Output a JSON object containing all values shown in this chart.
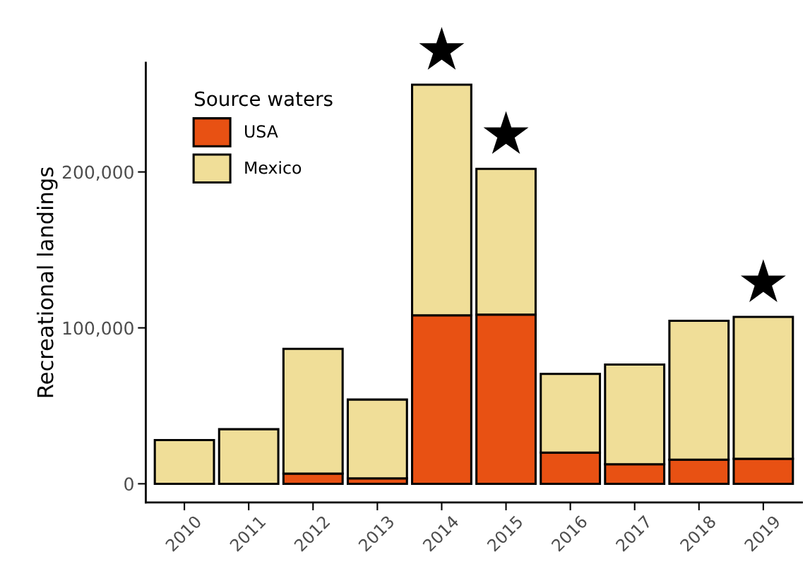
{
  "chart_data": {
    "type": "bar",
    "ylabel": "Recreational landings",
    "legend_title": "Source waters",
    "categories": [
      "2010",
      "2011",
      "2012",
      "2013",
      "2014",
      "2015",
      "2016",
      "2017",
      "2018",
      "2019"
    ],
    "stacked": true,
    "series": [
      {
        "name": "USA",
        "color": "#e85113",
        "values": [
          null,
          null,
          6500,
          3500,
          108000,
          108500,
          20000,
          12500,
          15500,
          16000
        ]
      },
      {
        "name": "Mexico",
        "color": "#f0de98",
        "values": [
          28000,
          35000,
          80000,
          50500,
          148000,
          93500,
          50500,
          64000,
          89000,
          91000
        ]
      }
    ],
    "ylim": [
      -12000,
      270000
    ],
    "yticks": [
      {
        "value": 0,
        "label": "0"
      },
      {
        "value": 100000,
        "label": "100,000"
      },
      {
        "value": 200000,
        "label": "200,000"
      }
    ],
    "grid": false,
    "legend": "top left",
    "annotations": [
      {
        "text": "★",
        "x": "2014",
        "y": 256000
      },
      {
        "text": "★",
        "x": "2015",
        "y": 202000
      },
      {
        "text": "★",
        "x": "2019",
        "y": 107000
      }
    ]
  }
}
